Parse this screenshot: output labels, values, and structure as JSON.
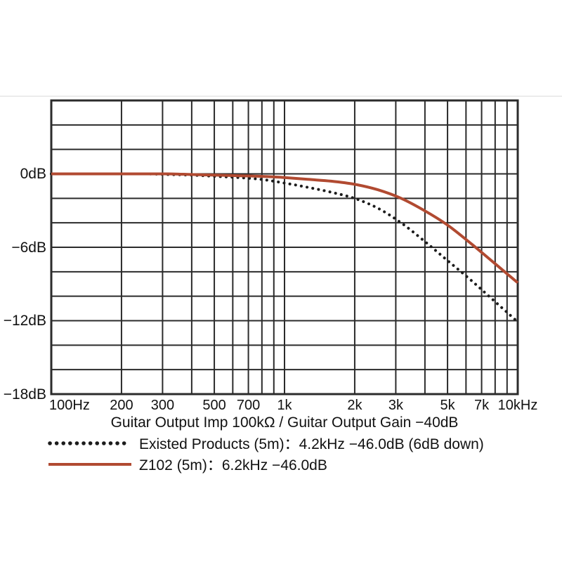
{
  "figure": {
    "background": "#ffffff",
    "grid_color": "#2b2b2b",
    "text_color": "#111111"
  },
  "chart_data": {
    "type": "line",
    "caption": "Guitar Output Imp 100kΩ / Guitar Output Gain −40dB",
    "x_axis": {
      "scale": "log",
      "min": 100,
      "max": 10000,
      "gridlines": [
        100,
        200,
        300,
        400,
        500,
        600,
        700,
        800,
        900,
        1000,
        2000,
        3000,
        4000,
        5000,
        6000,
        7000,
        8000,
        9000,
        10000
      ],
      "ticks": [
        {
          "f": 100,
          "label": "100Hz"
        },
        {
          "f": 200,
          "label": "200"
        },
        {
          "f": 300,
          "label": "300"
        },
        {
          "f": 500,
          "label": "500"
        },
        {
          "f": 700,
          "label": "700"
        },
        {
          "f": 1000,
          "label": "1k"
        },
        {
          "f": 2000,
          "label": "2k"
        },
        {
          "f": 3000,
          "label": "3k"
        },
        {
          "f": 5000,
          "label": "5k"
        },
        {
          "f": 7000,
          "label": "7k"
        },
        {
          "f": 10000,
          "label": "10kHz"
        }
      ]
    },
    "y_axis": {
      "unit": "dB",
      "min": -18,
      "max": 6,
      "grid_step": 2,
      "ticks": [
        {
          "db": 0,
          "label": "0dB"
        },
        {
          "db": -6,
          "label": "−6dB"
        },
        {
          "db": -12,
          "label": "−12dB"
        },
        {
          "db": -18,
          "label": "−18dB"
        }
      ]
    },
    "series": [
      {
        "name": "existed-products",
        "label": "Existed Products (5m)：4.2kHz −46.0dB (6dB down)",
        "style": "dotted",
        "color": "#1c1c1c",
        "x": [
          100,
          126,
          158,
          200,
          251,
          316,
          398,
          501,
          631,
          794,
          1000,
          1259,
          1585,
          1995,
          2512,
          3162,
          3981,
          5012,
          6310,
          7943,
          10000
        ],
        "y": [
          0,
          0,
          0,
          0,
          0,
          -0.05,
          -0.1,
          -0.2,
          -0.3,
          -0.45,
          -0.75,
          -1.1,
          -1.5,
          -2.0,
          -2.8,
          -4.0,
          -5.5,
          -7.1,
          -8.7,
          -10.4,
          -12.1
        ]
      },
      {
        "name": "z102",
        "label": "Z102 (5m)：6.2kHz −46.0dB",
        "style": "solid",
        "color": "#b14a31",
        "x": [
          100,
          126,
          158,
          200,
          251,
          316,
          398,
          501,
          631,
          794,
          1000,
          1259,
          1585,
          1995,
          2512,
          3162,
          3981,
          5012,
          6310,
          7943,
          10000
        ],
        "y": [
          0,
          0,
          0,
          0,
          0,
          0,
          -0.05,
          -0.1,
          -0.15,
          -0.2,
          -0.3,
          -0.45,
          -0.6,
          -0.85,
          -1.3,
          -2.0,
          -3.0,
          -4.2,
          -5.7,
          -7.3,
          -8.9
        ]
      }
    ],
    "legend_position": "bottom-left",
    "grid": true
  }
}
